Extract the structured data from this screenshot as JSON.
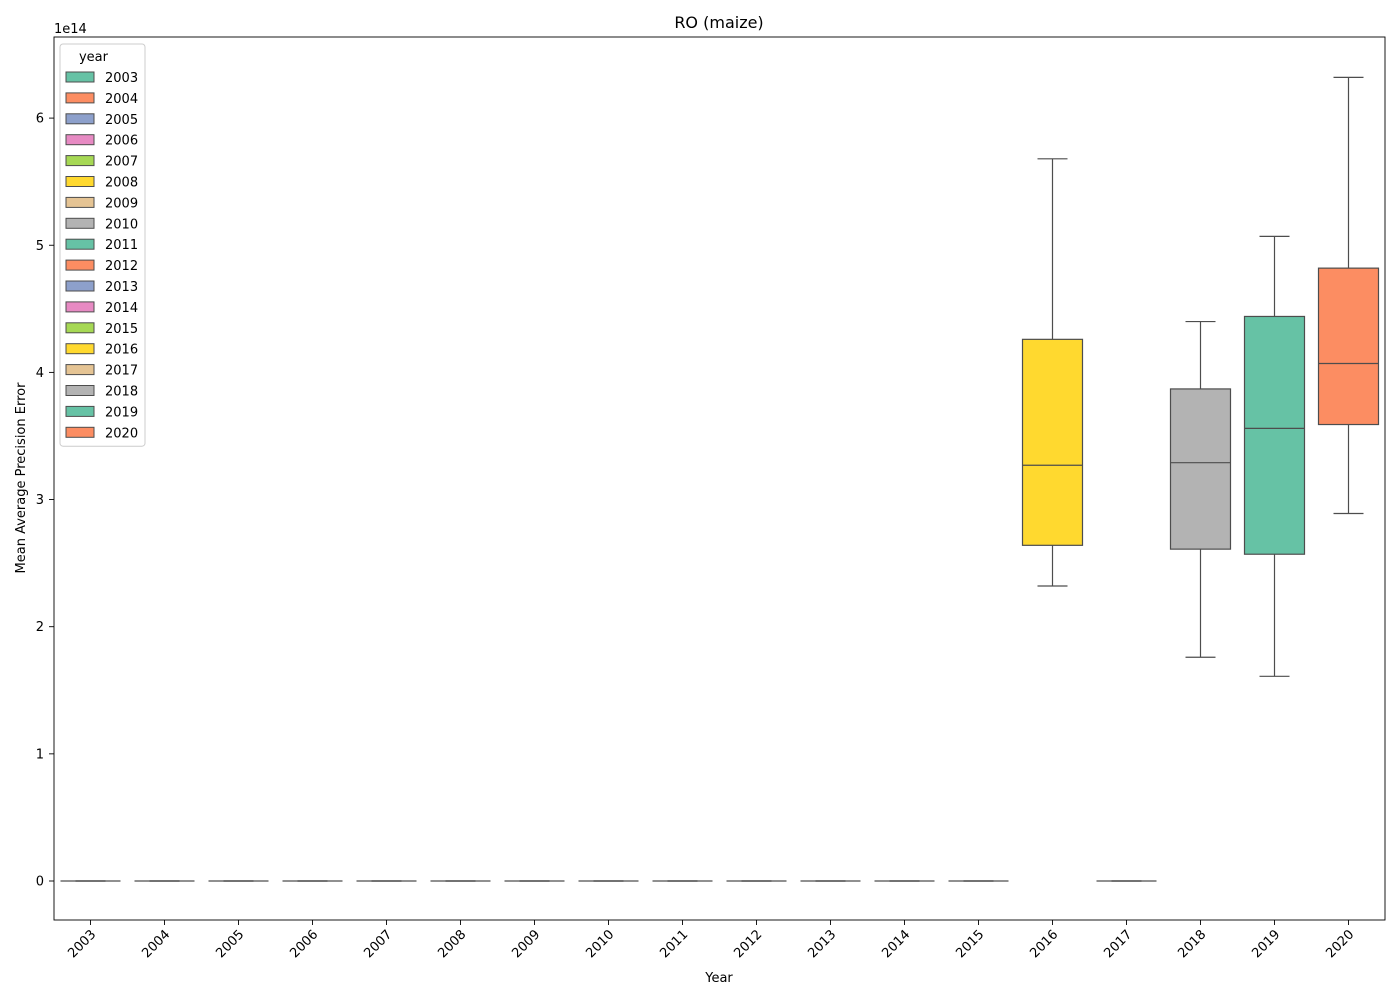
{
  "chart_data": {
    "type": "box",
    "title": "RO (maize)",
    "xlabel": "Year",
    "ylabel": "Mean Average Precision Error",
    "y_scale_label": "1e14",
    "y_multiplier": 100000000000000.0,
    "ylim": [
      -0.3,
      6.6
    ],
    "yticks": [
      0,
      1,
      2,
      3,
      4,
      5,
      6
    ],
    "ytick_labels": [
      "0",
      "1",
      "2",
      "3",
      "4",
      "5",
      "6"
    ],
    "categories": [
      "2003",
      "2004",
      "2005",
      "2006",
      "2007",
      "2008",
      "2009",
      "2010",
      "2011",
      "2012",
      "2013",
      "2014",
      "2015",
      "2016",
      "2017",
      "2018",
      "2019",
      "2020"
    ],
    "palette": [
      "#66c2a5",
      "#fc8d62",
      "#8da0cb",
      "#e78ac3",
      "#a6d854",
      "#ffd92f",
      "#e5c494",
      "#b3b3b3"
    ],
    "boxes": [
      {
        "year": "2003",
        "whislo": 0,
        "q1": 0,
        "med": 0,
        "q3": 0,
        "whishi": 0
      },
      {
        "year": "2004",
        "whislo": 0,
        "q1": 0,
        "med": 0,
        "q3": 0,
        "whishi": 0
      },
      {
        "year": "2005",
        "whislo": 0,
        "q1": 0,
        "med": 0,
        "q3": 0,
        "whishi": 0
      },
      {
        "year": "2006",
        "whislo": 0,
        "q1": 0,
        "med": 0,
        "q3": 0,
        "whishi": 0
      },
      {
        "year": "2007",
        "whislo": 0,
        "q1": 0,
        "med": 0,
        "q3": 0,
        "whishi": 0
      },
      {
        "year": "2008",
        "whislo": 0,
        "q1": 0,
        "med": 0,
        "q3": 0,
        "whishi": 0
      },
      {
        "year": "2009",
        "whislo": 0,
        "q1": 0,
        "med": 0,
        "q3": 0,
        "whishi": 0
      },
      {
        "year": "2010",
        "whislo": 0,
        "q1": 0,
        "med": 0,
        "q3": 0,
        "whishi": 0
      },
      {
        "year": "2011",
        "whislo": 0,
        "q1": 0,
        "med": 0,
        "q3": 0,
        "whishi": 0
      },
      {
        "year": "2012",
        "whislo": 0,
        "q1": 0,
        "med": 0,
        "q3": 0,
        "whishi": 0
      },
      {
        "year": "2013",
        "whislo": 0,
        "q1": 0,
        "med": 0,
        "q3": 0,
        "whishi": 0
      },
      {
        "year": "2014",
        "whislo": 0,
        "q1": 0,
        "med": 0,
        "q3": 0,
        "whishi": 0
      },
      {
        "year": "2015",
        "whislo": 0,
        "q1": 0,
        "med": 0,
        "q3": 0,
        "whishi": 0
      },
      {
        "year": "2016",
        "whislo": 2.32,
        "q1": 2.64,
        "med": 3.27,
        "q3": 4.26,
        "whishi": 5.68
      },
      {
        "year": "2017",
        "whislo": 0,
        "q1": 0,
        "med": 0,
        "q3": 0,
        "whishi": 0
      },
      {
        "year": "2018",
        "whislo": 1.76,
        "q1": 2.61,
        "med": 3.29,
        "q3": 3.87,
        "whishi": 4.4
      },
      {
        "year": "2019",
        "whislo": 1.61,
        "q1": 2.57,
        "med": 3.56,
        "q3": 4.44,
        "whishi": 5.07
      },
      {
        "year": "2020",
        "whislo": 2.89,
        "q1": 3.59,
        "med": 4.07,
        "q3": 4.82,
        "whishi": 6.32
      }
    ],
    "legend": {
      "title": "year",
      "location": "upper left",
      "entries": [
        "2003",
        "2004",
        "2005",
        "2006",
        "2007",
        "2008",
        "2009",
        "2010",
        "2011",
        "2012",
        "2013",
        "2014",
        "2015",
        "2016",
        "2017",
        "2018",
        "2019",
        "2020"
      ]
    }
  }
}
